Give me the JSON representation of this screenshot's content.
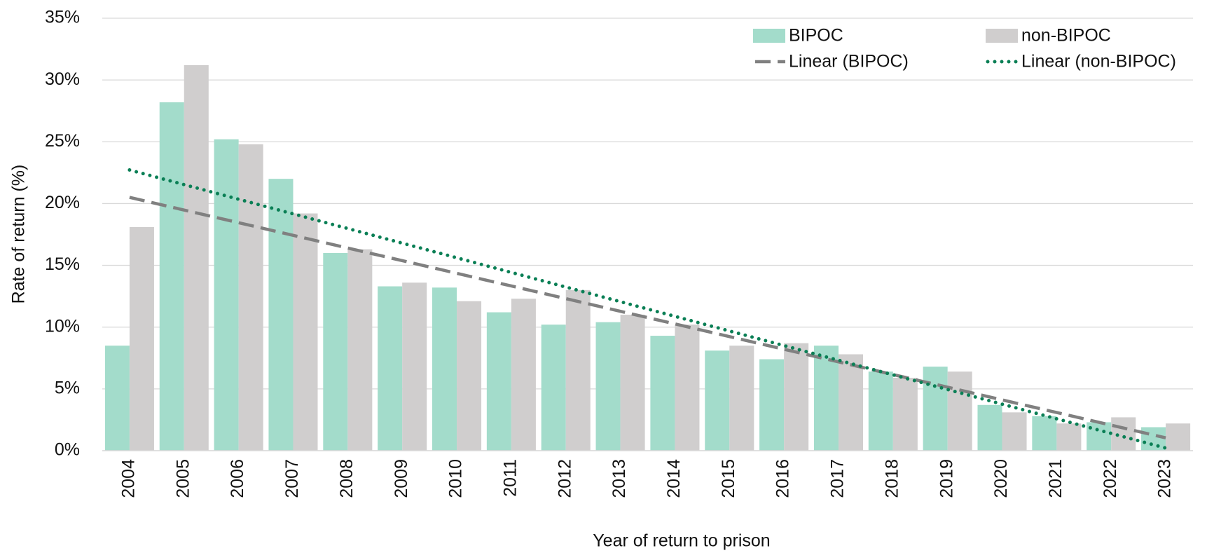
{
  "chart_data": {
    "type": "bar",
    "x_label": "Year of return to prison",
    "y_label": "Rate of return (%)",
    "categories": [
      "2004",
      "2005",
      "2006",
      "2007",
      "2008",
      "2009",
      "2010",
      "2011",
      "2012",
      "2013",
      "2014",
      "2015",
      "2016",
      "2017",
      "2018",
      "2019",
      "2020",
      "2021",
      "2022",
      "2023"
    ],
    "series": [
      {
        "name": "BIPOC",
        "color": "#a3dccb",
        "values": [
          8.5,
          28.2,
          25.2,
          22.0,
          16.0,
          13.3,
          13.2,
          11.2,
          10.2,
          10.4,
          9.3,
          8.1,
          7.4,
          8.5,
          6.4,
          6.8,
          3.7,
          2.8,
          2.3,
          1.9
        ],
        "trendline": {
          "name": "Linear (BIPOC)",
          "color": "#808080",
          "style": "dashed"
        }
      },
      {
        "name": "non-BIPOC",
        "color": "#d0cece",
        "values": [
          18.1,
          31.2,
          24.8,
          19.2,
          16.3,
          13.6,
          12.1,
          12.3,
          13.0,
          11.0,
          10.2,
          8.5,
          8.7,
          7.8,
          5.9,
          6.4,
          3.1,
          2.2,
          2.7,
          2.2
        ],
        "trendline": {
          "name": "Linear (non-BIPOC)",
          "color": "#0a7f55",
          "style": "dotted"
        }
      }
    ],
    "ylim": [
      0,
      35
    ],
    "yticks": [
      {
        "value": 0,
        "label": "0%"
      },
      {
        "value": 5,
        "label": "5%"
      },
      {
        "value": 10,
        "label": "10%"
      },
      {
        "value": 15,
        "label": "15%"
      },
      {
        "value": 20,
        "label": "20%"
      },
      {
        "value": 25,
        "label": "25%"
      },
      {
        "value": 30,
        "label": "30%"
      },
      {
        "value": 35,
        "label": "35%"
      }
    ],
    "grid": true,
    "legend": "top-right"
  }
}
